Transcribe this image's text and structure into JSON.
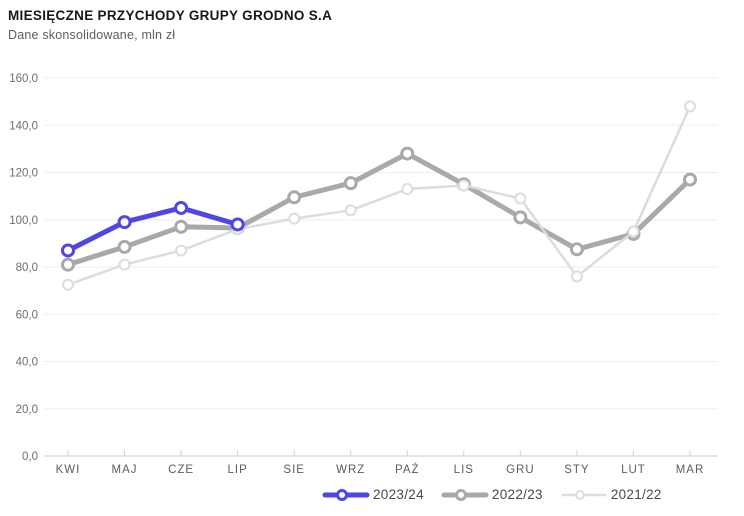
{
  "header": {
    "title": "MIESIĘCZNE PRZYCHODY GRUPY GRODNO S.A",
    "subtitle": "Dane skonsolidowane, mln zł"
  },
  "chart_data": {
    "type": "line",
    "title": "MIESIĘCZNE PRZYCHODY GRUPY GRODNO S.A",
    "subtitle": "Dane skonsolidowane, mln zł",
    "unit": "mln zł",
    "categories": [
      "KWI",
      "MAJ",
      "CZE",
      "LIP",
      "SIE",
      "WRZ",
      "PAŹ",
      "LIS",
      "GRU",
      "STY",
      "LUT",
      "MAR"
    ],
    "series": [
      {
        "name": "2023/24",
        "color": "#4F46E5",
        "emphasis": "bold",
        "values": [
          87,
          99,
          105,
          98
        ]
      },
      {
        "name": "2022/23",
        "color": "#A9A9A9",
        "emphasis": "bold",
        "values": [
          81,
          88.5,
          97,
          96.5,
          109.5,
          115.5,
          128,
          115,
          101,
          87.5,
          94,
          117
        ]
      },
      {
        "name": "2021/22",
        "color": "#DCDCDC",
        "emphasis": "light",
        "values": [
          72.5,
          81,
          87,
          96,
          100.5,
          104,
          113,
          114.5,
          109,
          76,
          95,
          148
        ]
      }
    ],
    "ylim": [
      0,
      160
    ],
    "ytick_step": 20,
    "y_tick_labels": [
      "0,0",
      "20,0",
      "40,0",
      "60,0",
      "80,0",
      "100,0",
      "120,0",
      "140,0",
      "160,0"
    ],
    "grid": "horizontal",
    "legend_position": "bottom"
  },
  "colors": {
    "accent": "#4F46E5",
    "series_prev": "#A9A9A9",
    "series_prev2": "#DCDCDC",
    "gridline": "#EDEDED",
    "axis_line": "#C9C9C9",
    "tick": "#CFCFCF",
    "axis_text": "#6E6E6E",
    "month_text": "#5C5C5C",
    "legend_text": "#4A4A4A"
  }
}
